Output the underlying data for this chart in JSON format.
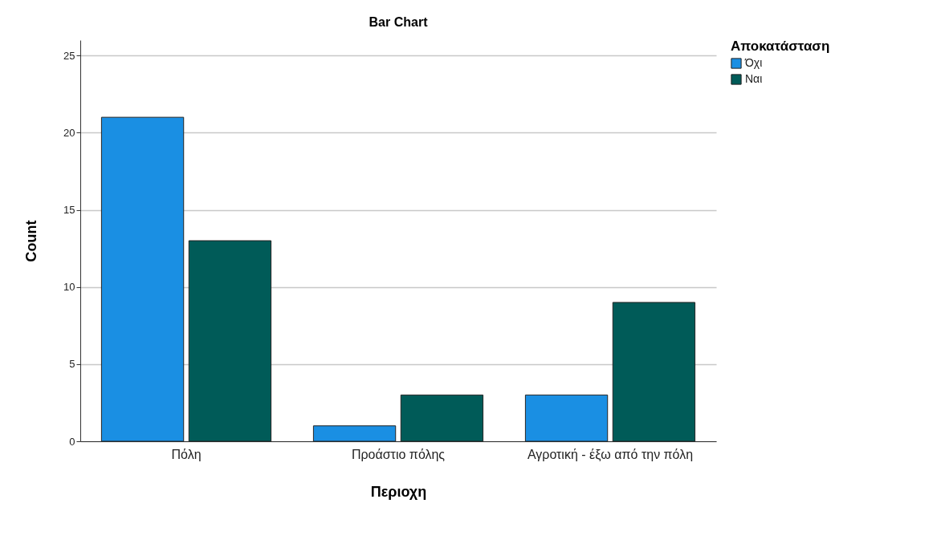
{
  "chart_data": {
    "type": "bar",
    "title": "Bar Chart",
    "xlabel": "Περιοχη",
    "ylabel": "Count",
    "legend_title": "Αποκατάσταση",
    "categories": [
      "Πόλη",
      "Προάστιο πόλης",
      "Αγροτική - έξω από την πόλη"
    ],
    "series": [
      {
        "name": "Όχι",
        "color": "#1a8fe3",
        "values": [
          21,
          1,
          3
        ]
      },
      {
        "name": "Ναι",
        "color": "#005b58",
        "values": [
          13,
          3,
          9
        ]
      }
    ],
    "ylim": [
      0,
      26
    ],
    "yticks": [
      0,
      5,
      10,
      15,
      20,
      25
    ],
    "grid": "y",
    "legend": "top right"
  }
}
